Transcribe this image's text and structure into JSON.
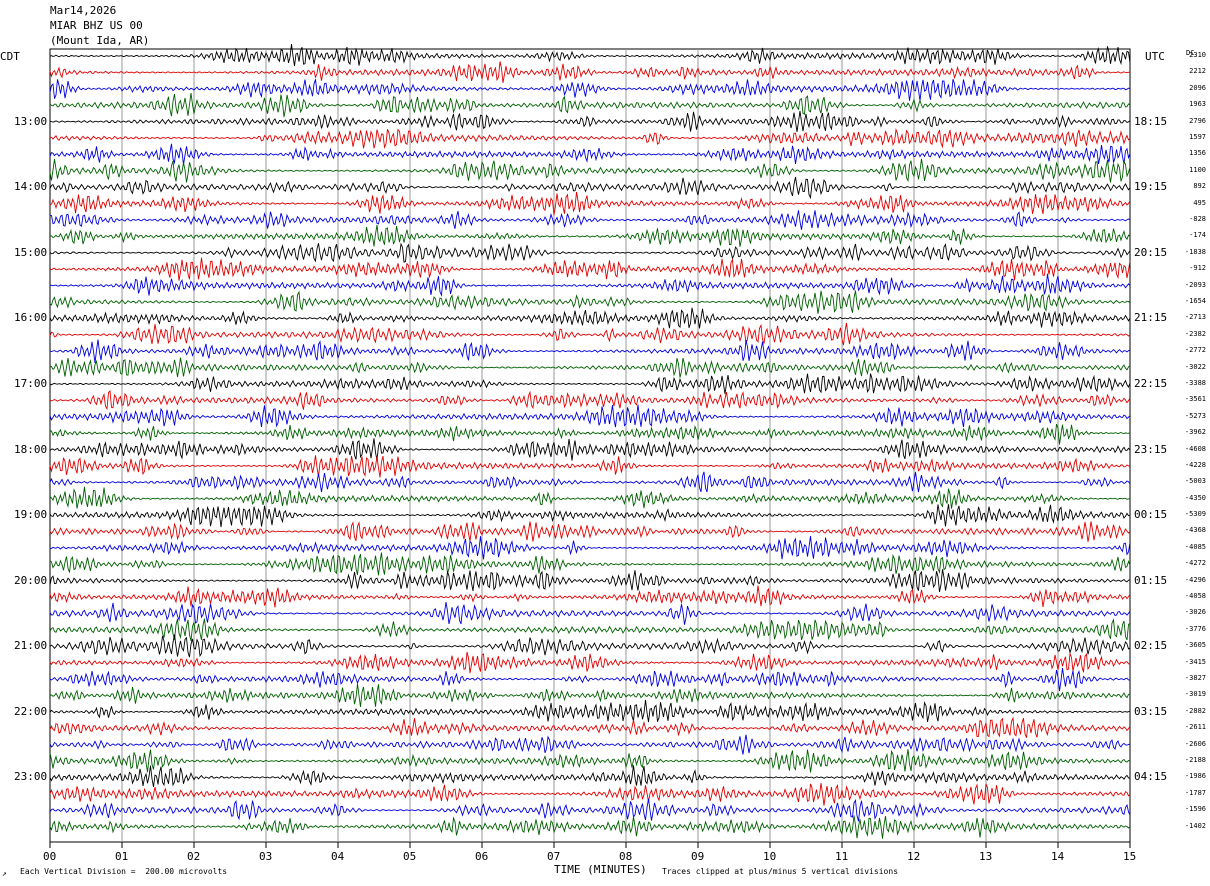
{
  "header": {
    "date": "Mar14,2026",
    "station": "MIAR BHZ US 00",
    "location": "(Mount Ida, AR)"
  },
  "axis_titles": {
    "left_zone": "CDT",
    "right_zone": "UTC",
    "dc_column": "DC",
    "x_title": "TIME (MINUTES)"
  },
  "footer": {
    "scale_marker": "↗",
    "scale_note": "Each Vertical Division =  200.00 microvolts",
    "clip_note": "Traces clipped at plus/minus 5 vertical divisions"
  },
  "chart_data": {
    "type": "line",
    "title": "",
    "xlabel": "TIME (MINUTES)",
    "xlim": [
      0,
      15
    ],
    "x_ticks": [
      "00",
      "01",
      "02",
      "03",
      "04",
      "05",
      "06",
      "07",
      "08",
      "09",
      "10",
      "11",
      "12",
      "13",
      "14",
      "15"
    ],
    "grid": true,
    "trace_count": 48,
    "minutes_per_trace": 15,
    "trace_color_cycle": [
      "#000000",
      "#e00000",
      "#0000e0",
      "#006000"
    ],
    "left_time_labels": [
      "13:00",
      "14:00",
      "15:00",
      "16:00",
      "17:00",
      "18:00",
      "19:00",
      "20:00",
      "21:00",
      "22:00",
      "23:00"
    ],
    "right_time_labels": [
      "18:15",
      "19:15",
      "20:15",
      "21:15",
      "22:15",
      "23:15",
      "00:15",
      "01:15",
      "02:15",
      "03:15",
      "04:15"
    ],
    "dc_offsets": [
      "2310",
      "2212",
      "2096",
      "1963",
      "2796",
      "1597",
      "1356",
      "1100",
      "892",
      "495",
      "-828",
      "-174",
      "-1838",
      "-912",
      "-2093",
      "-1654",
      "-2713",
      "-2382",
      "-2772",
      "-3022",
      "-3388",
      "-3561",
      "-5273",
      "-3962",
      "-4608",
      "-4228",
      "-5003",
      "-4350",
      "-5309",
      "-4368",
      "-4085",
      "-4272",
      "-4296",
      "-4058",
      "-3026",
      "-3776",
      "-3605",
      "-3415",
      "-3827",
      "-3019",
      "-2882",
      "-2611",
      "-2606",
      "-2188",
      "-1986",
      "-1787",
      "-1596",
      "-1402"
    ],
    "scale_microvolts_per_division": 200.0,
    "clip_divisions": 5
  }
}
